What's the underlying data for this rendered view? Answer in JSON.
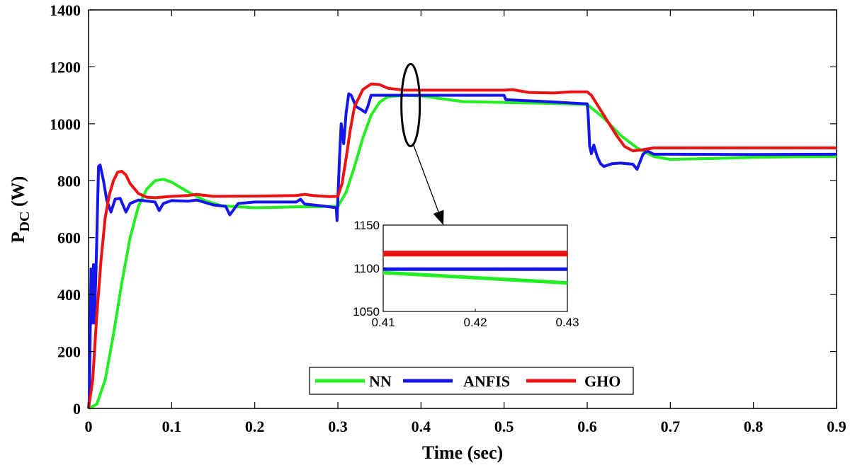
{
  "chart_data": {
    "type": "line",
    "xlabel": "Time (sec)",
    "ylabel_main": "P",
    "ylabel_sub": "DC",
    "ylabel_unit": " (W)",
    "xlim": [
      0,
      0.9
    ],
    "ylim": [
      0,
      1400
    ],
    "xticks": [
      0,
      0.1,
      0.2,
      0.3,
      0.4,
      0.5,
      0.6,
      0.7,
      0.8,
      0.9
    ],
    "xtick_labels": [
      "0",
      "0.1",
      "0.2",
      "0.3",
      "0.4",
      "0.5",
      "0.6",
      "0.7",
      "0.8",
      "0.9"
    ],
    "yticks": [
      0,
      200,
      400,
      600,
      800,
      1000,
      1200,
      1400
    ],
    "ytick_labels": [
      "0",
      "200",
      "400",
      "600",
      "800",
      "1000",
      "1200",
      "1400"
    ],
    "grid": false,
    "legend_position": "bottom-center",
    "series": [
      {
        "name": "NN",
        "color": "#22ee22",
        "points": [
          [
            0,
            0
          ],
          [
            0.01,
            15
          ],
          [
            0.02,
            100
          ],
          [
            0.03,
            260
          ],
          [
            0.04,
            440
          ],
          [
            0.05,
            600
          ],
          [
            0.06,
            710
          ],
          [
            0.07,
            770
          ],
          [
            0.08,
            800
          ],
          [
            0.09,
            805
          ],
          [
            0.1,
            795
          ],
          [
            0.12,
            760
          ],
          [
            0.14,
            730
          ],
          [
            0.16,
            712
          ],
          [
            0.2,
            705
          ],
          [
            0.25,
            708
          ],
          [
            0.3,
            710
          ],
          [
            0.31,
            760
          ],
          [
            0.32,
            850
          ],
          [
            0.33,
            950
          ],
          [
            0.34,
            1030
          ],
          [
            0.35,
            1075
          ],
          [
            0.36,
            1095
          ],
          [
            0.38,
            1100
          ],
          [
            0.4,
            1098
          ],
          [
            0.45,
            1078
          ],
          [
            0.5,
            1075
          ],
          [
            0.55,
            1072
          ],
          [
            0.6,
            1068
          ],
          [
            0.62,
            1020
          ],
          [
            0.64,
            960
          ],
          [
            0.66,
            915
          ],
          [
            0.68,
            885
          ],
          [
            0.7,
            875
          ],
          [
            0.75,
            878
          ],
          [
            0.8,
            882
          ],
          [
            0.85,
            884
          ],
          [
            0.9,
            885
          ]
        ]
      },
      {
        "name": "ANFIS",
        "color": "#1515ee",
        "points": [
          [
            0,
            0
          ],
          [
            0.001,
            40
          ],
          [
            0.003,
            490
          ],
          [
            0.004,
            300
          ],
          [
            0.006,
            505
          ],
          [
            0.007,
            300
          ],
          [
            0.009,
            490
          ],
          [
            0.012,
            850
          ],
          [
            0.014,
            855
          ],
          [
            0.018,
            800
          ],
          [
            0.022,
            730
          ],
          [
            0.027,
            690
          ],
          [
            0.032,
            735
          ],
          [
            0.038,
            738
          ],
          [
            0.045,
            690
          ],
          [
            0.05,
            720
          ],
          [
            0.06,
            732
          ],
          [
            0.08,
            725
          ],
          [
            0.085,
            695
          ],
          [
            0.09,
            720
          ],
          [
            0.1,
            730
          ],
          [
            0.12,
            728
          ],
          [
            0.13,
            732
          ],
          [
            0.135,
            728
          ],
          [
            0.15,
            715
          ],
          [
            0.165,
            710
          ],
          [
            0.17,
            680
          ],
          [
            0.18,
            720
          ],
          [
            0.2,
            725
          ],
          [
            0.25,
            725
          ],
          [
            0.255,
            735
          ],
          [
            0.26,
            718
          ],
          [
            0.28,
            712
          ],
          [
            0.298,
            705
          ],
          [
            0.299,
            660
          ],
          [
            0.302,
            880
          ],
          [
            0.304,
            1000
          ],
          [
            0.307,
            930
          ],
          [
            0.31,
            1040
          ],
          [
            0.313,
            1105
          ],
          [
            0.316,
            1100
          ],
          [
            0.322,
            1060
          ],
          [
            0.328,
            1050
          ],
          [
            0.333,
            1040
          ],
          [
            0.336,
            1060
          ],
          [
            0.34,
            1100
          ],
          [
            0.36,
            1100
          ],
          [
            0.4,
            1100
          ],
          [
            0.5,
            1100
          ],
          [
            0.502,
            1085
          ],
          [
            0.52,
            1082
          ],
          [
            0.55,
            1078
          ],
          [
            0.6,
            1070
          ],
          [
            0.601,
            1040
          ],
          [
            0.603,
            920
          ],
          [
            0.605,
            895
          ],
          [
            0.608,
            925
          ],
          [
            0.612,
            885
          ],
          [
            0.616,
            860
          ],
          [
            0.62,
            850
          ],
          [
            0.63,
            860
          ],
          [
            0.64,
            862
          ],
          [
            0.655,
            858
          ],
          [
            0.66,
            840
          ],
          [
            0.667,
            892
          ],
          [
            0.672,
            905
          ],
          [
            0.68,
            893
          ],
          [
            0.7,
            893
          ],
          [
            0.8,
            892
          ],
          [
            0.9,
            893
          ]
        ]
      },
      {
        "name": "GHO",
        "color": "#ee1111",
        "points": [
          [
            0,
            0
          ],
          [
            0.005,
            100
          ],
          [
            0.01,
            330
          ],
          [
            0.015,
            520
          ],
          [
            0.02,
            670
          ],
          [
            0.025,
            750
          ],
          [
            0.03,
            800
          ],
          [
            0.035,
            830
          ],
          [
            0.04,
            833
          ],
          [
            0.045,
            820
          ],
          [
            0.05,
            790
          ],
          [
            0.06,
            755
          ],
          [
            0.07,
            742
          ],
          [
            0.08,
            740
          ],
          [
            0.1,
            745
          ],
          [
            0.12,
            748
          ],
          [
            0.13,
            752
          ],
          [
            0.15,
            745
          ],
          [
            0.2,
            746
          ],
          [
            0.25,
            748
          ],
          [
            0.26,
            752
          ],
          [
            0.27,
            748
          ],
          [
            0.29,
            744
          ],
          [
            0.3,
            745
          ],
          [
            0.305,
            790
          ],
          [
            0.31,
            880
          ],
          [
            0.315,
            980
          ],
          [
            0.32,
            1060
          ],
          [
            0.33,
            1120
          ],
          [
            0.34,
            1140
          ],
          [
            0.35,
            1138
          ],
          [
            0.36,
            1125
          ],
          [
            0.38,
            1118
          ],
          [
            0.42,
            1118
          ],
          [
            0.5,
            1118
          ],
          [
            0.51,
            1120
          ],
          [
            0.53,
            1110
          ],
          [
            0.56,
            1108
          ],
          [
            0.58,
            1112
          ],
          [
            0.6,
            1112
          ],
          [
            0.605,
            1100
          ],
          [
            0.62,
            1030
          ],
          [
            0.635,
            960
          ],
          [
            0.645,
            920
          ],
          [
            0.655,
            905
          ],
          [
            0.665,
            908
          ],
          [
            0.68,
            915
          ],
          [
            0.75,
            915
          ],
          [
            0.8,
            915
          ],
          [
            0.9,
            915
          ]
        ]
      }
    ],
    "annotation": {
      "type": "zoom-ellipse",
      "center_x": 0.3875,
      "center_y": 1058,
      "description_label": ""
    },
    "inset": {
      "xlim": [
        0.41,
        0.43
      ],
      "ylim": [
        1050,
        1150
      ],
      "xticks": [
        0.41,
        0.42,
        0.43
      ],
      "xtick_labels": [
        "0.41",
        "0.42",
        "0.43"
      ],
      "yticks": [
        1050,
        1100,
        1150
      ],
      "ytick_labels": [
        "1050",
        "1100",
        "1150"
      ],
      "series": [
        {
          "name": "NN",
          "color": "#22ee22",
          "points": [
            [
              0.41,
              1095
            ],
            [
              0.43,
              1083
            ]
          ]
        },
        {
          "name": "ANFIS",
          "color": "#1515ee",
          "points": [
            [
              0.41,
              1099
            ],
            [
              0.43,
              1099
            ]
          ]
        },
        {
          "name": "GHO",
          "color": "#ee1111",
          "points": [
            [
              0.41,
              1117
            ],
            [
              0.43,
              1117
            ]
          ]
        }
      ]
    }
  }
}
